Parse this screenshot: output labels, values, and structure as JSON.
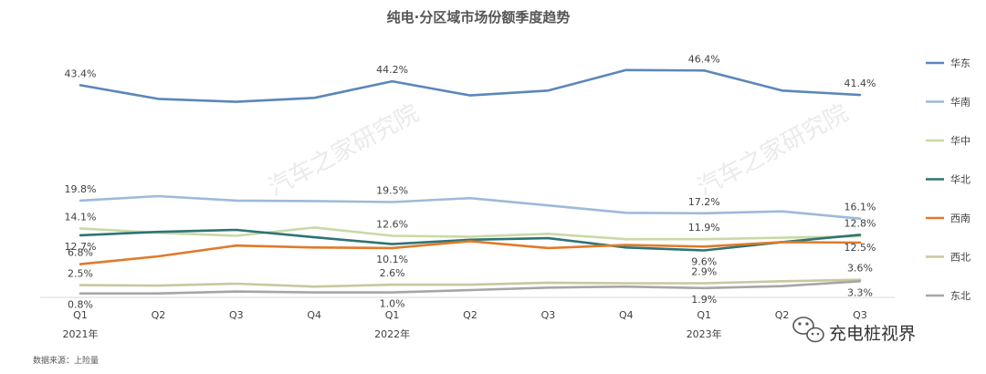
{
  "chart_data": {
    "type": "line",
    "title": "纯电·分区域市场份额季度趋势",
    "categories": [
      "Q1",
      "Q2",
      "Q3",
      "Q4",
      "Q1",
      "Q2",
      "Q3",
      "Q4",
      "Q1",
      "Q2",
      "Q3"
    ],
    "year_labels": [
      {
        "index": 0,
        "text": "2021年"
      },
      {
        "index": 4,
        "text": "2022年"
      },
      {
        "index": 8,
        "text": "2023年"
      }
    ],
    "ylim": [
      0,
      50
    ],
    "grid": false,
    "legend_position": "right",
    "series": [
      {
        "name": "华东",
        "color": "#5b87b9",
        "values": [
          43.4,
          40.6,
          40.0,
          40.8,
          44.2,
          41.3,
          42.3,
          46.5,
          46.4,
          42.3,
          41.4
        ],
        "labels": [
          {
            "i": 0,
            "text": "43.4%",
            "pos": "above"
          },
          {
            "i": 4,
            "text": "44.2%",
            "pos": "above"
          },
          {
            "i": 8,
            "text": "46.4%",
            "pos": "above"
          },
          {
            "i": 10,
            "text": "41.4%",
            "pos": "above"
          }
        ]
      },
      {
        "name": "华南",
        "color": "#9dbad9",
        "values": [
          19.8,
          20.7,
          19.8,
          19.7,
          19.5,
          20.3,
          18.8,
          17.3,
          17.2,
          17.6,
          16.1
        ],
        "labels": [
          {
            "i": 0,
            "text": "19.8%",
            "pos": "above"
          },
          {
            "i": 4,
            "text": "19.5%",
            "pos": "above"
          },
          {
            "i": 8,
            "text": "17.2%",
            "pos": "above"
          },
          {
            "i": 10,
            "text": "16.1%",
            "pos": "above"
          }
        ]
      },
      {
        "name": "华中",
        "color": "#c9d9a7",
        "values": [
          14.1,
          13.2,
          12.6,
          14.3,
          12.6,
          12.4,
          13.0,
          11.9,
          11.9,
          12.2,
          12.5
        ],
        "labels": [
          {
            "i": 0,
            "text": "14.1%",
            "pos": "above"
          },
          {
            "i": 4,
            "text": "12.6%",
            "pos": "above"
          },
          {
            "i": 8,
            "text": "11.9%",
            "pos": "above"
          },
          {
            "i": 10,
            "text": "12.5%",
            "pos": "below"
          }
        ]
      },
      {
        "name": "华北",
        "color": "#2e7474",
        "values": [
          12.7,
          13.4,
          13.8,
          12.3,
          10.9,
          11.8,
          12.1,
          10.2,
          9.6,
          11.3,
          12.8
        ],
        "labels": [
          {
            "i": 0,
            "text": "12.7%",
            "pos": "below"
          },
          {
            "i": 8,
            "text": "9.6%",
            "pos": "below"
          },
          {
            "i": 10,
            "text": "12.8%",
            "pos": "above"
          }
        ]
      },
      {
        "name": "西南",
        "color": "#e07a2a",
        "values": [
          6.8,
          8.4,
          10.6,
          10.2,
          10.1,
          11.5,
          10.1,
          10.7,
          10.4,
          11.3,
          11.2
        ],
        "labels": [
          {
            "i": 0,
            "text": "6.8%",
            "pos": "above"
          },
          {
            "i": 4,
            "text": "10.1%",
            "pos": "below"
          }
        ]
      },
      {
        "name": "西北",
        "color": "#c8c7a0",
        "values": [
          2.5,
          2.4,
          2.8,
          2.2,
          2.6,
          2.6,
          3.0,
          2.9,
          2.9,
          3.3,
          3.6
        ],
        "labels": [
          {
            "i": 0,
            "text": "2.5%",
            "pos": "above"
          },
          {
            "i": 4,
            "text": "2.6%",
            "pos": "above"
          },
          {
            "i": 8,
            "text": "2.9%",
            "pos": "above"
          },
          {
            "i": 10,
            "text": "3.6%",
            "pos": "above"
          }
        ]
      },
      {
        "name": "东北",
        "color": "#a6a6a6",
        "values": [
          0.8,
          0.8,
          1.2,
          1.0,
          1.0,
          1.5,
          2.0,
          2.2,
          1.9,
          2.3,
          3.3
        ],
        "labels": [
          {
            "i": 0,
            "text": "0.8%",
            "pos": "below"
          },
          {
            "i": 4,
            "text": "1.0%",
            "pos": "below"
          },
          {
            "i": 8,
            "text": "1.9%",
            "pos": "below"
          },
          {
            "i": 10,
            "text": "3.3%",
            "pos": "below"
          }
        ]
      }
    ]
  },
  "source_note": "数据来源：上险量",
  "watermark": "汽车之家研究院",
  "brand": {
    "icon": "wechat-icon",
    "text": "充电桩视界"
  }
}
